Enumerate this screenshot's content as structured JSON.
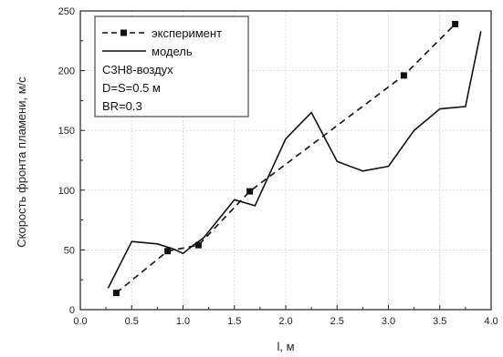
{
  "chart_data": {
    "type": "line",
    "xlabel": "l, м",
    "ylabel": "Скорость фронта пламени, м/с",
    "xlim": [
      0.0,
      4.0
    ],
    "ylim": [
      0,
      250
    ],
    "x_ticks": [
      "0.0",
      "0.5",
      "1.0",
      "1.5",
      "2.0",
      "2.5",
      "3.0",
      "3.5",
      "4.0"
    ],
    "y_ticks": [
      "0",
      "50",
      "100",
      "150",
      "200",
      "250"
    ],
    "grid": true,
    "legend_position": "top-left",
    "series": [
      {
        "name": "эксперимент",
        "style": "dashed-line-square-markers",
        "color": "#111111",
        "x": [
          0.35,
          0.85,
          1.15,
          1.65,
          3.15,
          3.65
        ],
        "y": [
          14,
          49,
          54,
          99,
          196,
          239
        ]
      },
      {
        "name": "модель",
        "style": "solid-line",
        "color": "#111111",
        "x": [
          0.27,
          0.5,
          0.75,
          0.9,
          1.0,
          1.1,
          1.2,
          1.5,
          1.7,
          2.0,
          2.25,
          2.5,
          2.75,
          3.0,
          3.25,
          3.5,
          3.75,
          3.9
        ],
        "y": [
          18,
          57,
          55,
          51,
          47,
          54,
          60,
          92,
          87,
          143,
          165,
          124,
          116,
          120,
          150,
          168,
          170,
          233
        ]
      }
    ],
    "annotations": [
      "C3H8-воздух",
      "D=S=0.5 м",
      "BR=0.3"
    ]
  }
}
